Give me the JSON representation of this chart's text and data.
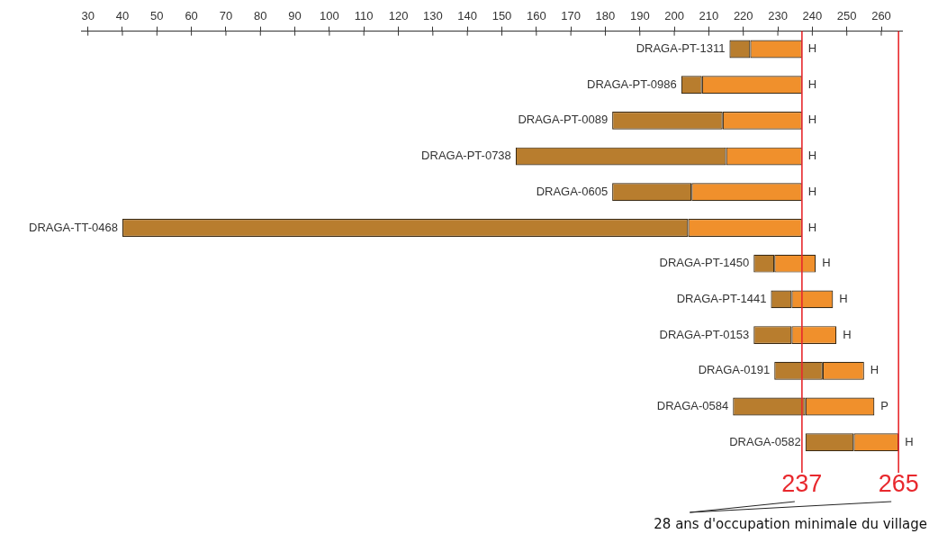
{
  "chart_data": {
    "type": "bar",
    "orientation": "horizontal",
    "categories": [
      "DRAGA-PT-1311",
      "DRAGA-PT-0986",
      "DRAGA-PT-0089",
      "DRAGA-PT-0738",
      "DRAGA-0605",
      "DRAGA-TT-0468",
      "DRAGA-PT-1450",
      "DRAGA-PT-1441",
      "DRAGA-PT-0153",
      "DRAGA-0191",
      "DRAGA-0584",
      "DRAGA-0582"
    ],
    "series": [
      {
        "color": "#b87d2e",
        "base": [
          216,
          202,
          182,
          154,
          182,
          40,
          223,
          228,
          223,
          229,
          217,
          238
        ],
        "values": [
          6,
          6,
          32,
          61,
          23,
          164,
          6,
          6,
          11,
          14,
          21,
          14
        ]
      },
      {
        "color": "#f0902c",
        "base": [
          222,
          208,
          214,
          215,
          205,
          204,
          229,
          234,
          234,
          243,
          238,
          252
        ],
        "values": [
          15,
          29,
          23,
          22,
          32,
          33,
          12,
          12,
          13,
          12,
          20,
          13
        ],
        "value_labels": [
          "H",
          "H",
          "H",
          "H",
          "H",
          "H",
          "H",
          "H",
          "H",
          "H",
          "P",
          "H"
        ]
      }
    ],
    "xlim": [
      28,
      266
    ],
    "xticks": [
      30,
      40,
      50,
      60,
      70,
      80,
      90,
      100,
      110,
      120,
      130,
      140,
      150,
      160,
      170,
      180,
      190,
      200,
      210,
      220,
      230,
      240,
      250,
      260
    ],
    "grid": false,
    "legend": false,
    "ref_lines": [
      {
        "axis": "x",
        "value": 237,
        "label": "237",
        "color": "#e8282d"
      },
      {
        "axis": "x",
        "value": 265,
        "label": "265",
        "color": "#e8282d"
      }
    ],
    "annotations": [
      "28 ans d'occupation minimale du village"
    ]
  }
}
